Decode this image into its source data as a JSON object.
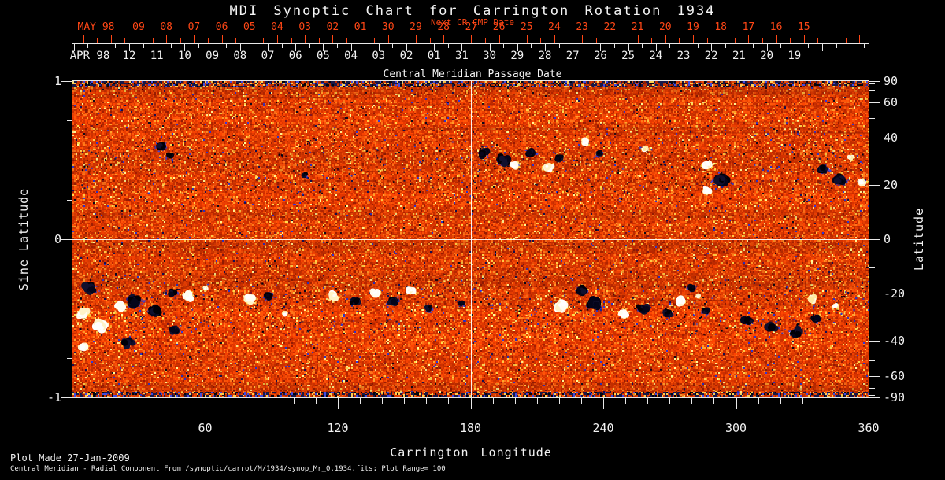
{
  "title": "MDI Synoptic Chart for Carrington Rotation 1934",
  "colors": {
    "background": "#000000",
    "foreground": "#f2f2f2",
    "next_cr_accent": "#ff4716",
    "grid_line": "#ffffff"
  },
  "cmp_axis": {
    "subtitle": "Next CR CMP Date",
    "axis_caption": "Central Meridian Passage Date",
    "next_row": {
      "month_label": "MAY 98",
      "dates": [
        "09",
        "08",
        "07",
        "06",
        "05",
        "04",
        "03",
        "02",
        "01",
        "30",
        "29",
        "28",
        "27",
        "26",
        "25",
        "24",
        "23",
        "22",
        "21",
        "20",
        "19",
        "18",
        "17",
        "16",
        "15"
      ]
    },
    "current_row": {
      "month_label": "APR 98",
      "dates": [
        "12",
        "11",
        "10",
        "09",
        "08",
        "07",
        "06",
        "05",
        "04",
        "03",
        "02",
        "01",
        "31",
        "30",
        "29",
        "28",
        "27",
        "26",
        "25",
        "24",
        "23",
        "22",
        "21",
        "20",
        "19"
      ]
    }
  },
  "left_axis": {
    "label": "Sine Latitude",
    "major_ticks": [
      "1",
      "0",
      "-1"
    ],
    "major_values": [
      1,
      0,
      -1
    ],
    "minor_values": [
      0.75,
      0.5,
      0.25,
      -0.25,
      -0.5,
      -0.75
    ]
  },
  "right_axis": {
    "label": "Latitude",
    "major_ticks": [
      "90",
      "60",
      "40",
      "20",
      "0",
      "-20",
      "-40",
      "-60",
      "-90"
    ],
    "major_values": [
      90,
      60,
      40,
      20,
      0,
      -20,
      -40,
      -60,
      -90
    ],
    "minor_values": [
      80,
      70,
      50,
      30,
      10,
      -10,
      -30,
      -50,
      -70,
      -80
    ]
  },
  "bottom_axis": {
    "label": "Carrington Longitude",
    "major_ticks": [
      "60",
      "120",
      "180",
      "240",
      "300",
      "360"
    ],
    "major_values": [
      60,
      120,
      180,
      240,
      300,
      360
    ],
    "minor_step": 10,
    "range": [
      0,
      360
    ]
  },
  "footer": {
    "line1": "Plot Made 27-Jan-2009",
    "line2": "Central Meridian - Radial Component From /synoptic/carrot/M/1934/synop_Mr_0.1934.fits; Plot Range=  100"
  },
  "chart_data": {
    "type": "heatmap",
    "title": "MDI Synoptic Chart for Carrington Rotation 1934",
    "x_axis": {
      "label": "Carrington Longitude",
      "range": [
        0,
        360
      ]
    },
    "y_axis": {
      "label": "Sine Latitude",
      "range": [
        -1,
        1
      ]
    },
    "value_range_gauss": [
      -100,
      100
    ],
    "colormap": {
      "strong_negative": "#000010",
      "negative_fringe": "#2d36c8",
      "background_quiet_sun": [
        "#b02600",
        "#d63400",
        "#f04004",
        "#ff5408",
        "#ff7a1c"
      ],
      "enhanced_network": "#ffd246",
      "strong_positive": "#ffffff"
    },
    "grid": {
      "vertical_line_lon": 180,
      "horizontal_line_sine_lat": 0,
      "color": "#ffffff"
    },
    "active_regions": [
      {
        "lon": 40,
        "lat": 36,
        "pol": "-",
        "size": 6,
        "str": 1.0
      },
      {
        "lon": 44,
        "lat": 32,
        "pol": "-",
        "size": 4,
        "str": 0.6
      },
      {
        "lon": 105,
        "lat": 24,
        "pol": "-",
        "size": 3,
        "str": 0.4
      },
      {
        "lon": 186,
        "lat": 33,
        "pol": "-",
        "size": 6,
        "str": 1.1
      },
      {
        "lon": 195,
        "lat": 30,
        "pol": "-",
        "size": 8,
        "str": 1.4
      },
      {
        "lon": 200,
        "lat": 28,
        "pol": "+",
        "size": 5,
        "str": 1.0
      },
      {
        "lon": 207,
        "lat": 33,
        "pol": "-",
        "size": 6,
        "str": 1.0
      },
      {
        "lon": 215,
        "lat": 27,
        "pol": "+",
        "size": 6,
        "str": 1.5
      },
      {
        "lon": 220,
        "lat": 31,
        "pol": "-",
        "size": 5,
        "str": 0.9
      },
      {
        "lon": 232,
        "lat": 38,
        "pol": "+",
        "size": 5,
        "str": 0.8
      },
      {
        "lon": 238,
        "lat": 33,
        "pol": "-",
        "size": 4,
        "str": 0.5
      },
      {
        "lon": 259,
        "lat": 35,
        "pol": "+",
        "size": 4,
        "str": 0.7
      },
      {
        "lon": 287,
        "lat": 28,
        "pol": "+",
        "size": 6,
        "str": 1.4
      },
      {
        "lon": 293,
        "lat": 22,
        "pol": "-",
        "size": 9,
        "str": 2.2
      },
      {
        "lon": 287,
        "lat": 18,
        "pol": "+",
        "size": 5,
        "str": 1.0
      },
      {
        "lon": 339,
        "lat": 26,
        "pol": "-",
        "size": 6,
        "str": 1.1
      },
      {
        "lon": 347,
        "lat": 22,
        "pol": "-",
        "size": 7,
        "str": 1.4
      },
      {
        "lon": 357,
        "lat": 21,
        "pol": "+",
        "size": 5,
        "str": 1.2
      },
      {
        "lon": 352,
        "lat": 31,
        "pol": "+",
        "size": 3,
        "str": 0.5
      },
      {
        "lon": 8,
        "lat": -18,
        "pol": "-",
        "size": 8,
        "str": 1.5
      },
      {
        "lon": 5,
        "lat": -28,
        "pol": "+",
        "size": 7,
        "str": 1.5
      },
      {
        "lon": 13,
        "lat": -33,
        "pol": "+",
        "size": 9,
        "str": 2.2
      },
      {
        "lon": 22,
        "lat": -25,
        "pol": "+",
        "size": 7,
        "str": 1.4
      },
      {
        "lon": 28,
        "lat": -23,
        "pol": "-",
        "size": 9,
        "str": 2.1
      },
      {
        "lon": 37,
        "lat": -27,
        "pol": "-",
        "size": 8,
        "str": 1.9
      },
      {
        "lon": 45,
        "lat": -20,
        "pol": "-",
        "size": 5,
        "str": 0.9
      },
      {
        "lon": 52,
        "lat": -21,
        "pol": "+",
        "size": 6,
        "str": 1.2
      },
      {
        "lon": 5,
        "lat": -43,
        "pol": "+",
        "size": 6,
        "str": 1.0
      },
      {
        "lon": 25,
        "lat": -41,
        "pol": "-",
        "size": 8,
        "str": 0.7
      },
      {
        "lon": 46,
        "lat": -35,
        "pol": "-",
        "size": 6,
        "str": 0.5
      },
      {
        "lon": 60,
        "lat": -18,
        "pol": "+",
        "size": 3,
        "str": 0.4
      },
      {
        "lon": 80,
        "lat": -22,
        "pol": "+",
        "size": 7,
        "str": 1.5
      },
      {
        "lon": 89,
        "lat": -21,
        "pol": "-",
        "size": 6,
        "str": 1.2
      },
      {
        "lon": 96,
        "lat": -28,
        "pol": "+",
        "size": 3,
        "str": 0.5
      },
      {
        "lon": 118,
        "lat": -21,
        "pol": "+",
        "size": 6,
        "str": 1.3
      },
      {
        "lon": 128,
        "lat": -23,
        "pol": "-",
        "size": 6,
        "str": 1.2
      },
      {
        "lon": 137,
        "lat": -20,
        "pol": "+",
        "size": 6,
        "str": 1.2
      },
      {
        "lon": 145,
        "lat": -23,
        "pol": "-",
        "size": 6,
        "str": 1.3
      },
      {
        "lon": 153,
        "lat": -19,
        "pol": "+",
        "size": 5,
        "str": 1.0
      },
      {
        "lon": 161,
        "lat": -26,
        "pol": "-",
        "size": 4,
        "str": 0.5
      },
      {
        "lon": 176,
        "lat": -24,
        "pol": "-",
        "size": 3,
        "str": 0.5
      },
      {
        "lon": 221,
        "lat": -25,
        "pol": "+",
        "size": 8,
        "str": 2.0
      },
      {
        "lon": 230,
        "lat": -19,
        "pol": "-",
        "size": 6,
        "str": 1.1
      },
      {
        "lon": 236,
        "lat": -24,
        "pol": "-",
        "size": 9,
        "str": 2.1
      },
      {
        "lon": 249,
        "lat": -28,
        "pol": "+",
        "size": 6,
        "str": 1.2
      },
      {
        "lon": 258,
        "lat": -26,
        "pol": "-",
        "size": 7,
        "str": 1.5
      },
      {
        "lon": 269,
        "lat": -28,
        "pol": "-",
        "size": 5,
        "str": 1.0
      },
      {
        "lon": 275,
        "lat": -23,
        "pol": "+",
        "size": 6,
        "str": 1.0
      },
      {
        "lon": 280,
        "lat": -18,
        "pol": "-",
        "size": 5,
        "str": 0.9
      },
      {
        "lon": 286,
        "lat": -27,
        "pol": "-",
        "size": 5,
        "str": 1.0
      },
      {
        "lon": 283,
        "lat": -21,
        "pol": "+",
        "size": 3,
        "str": 0.5
      },
      {
        "lon": 305,
        "lat": -31,
        "pol": "-",
        "size": 8,
        "str": 0.7
      },
      {
        "lon": 316,
        "lat": -34,
        "pol": "-",
        "size": 8,
        "str": 0.7
      },
      {
        "lon": 327,
        "lat": -36,
        "pol": "-",
        "size": 7,
        "str": 0.6
      },
      {
        "lon": 336,
        "lat": -30,
        "pol": "-",
        "size": 5,
        "str": 0.5
      },
      {
        "lon": 334,
        "lat": -22,
        "pol": "+",
        "size": 6,
        "str": 0.7
      },
      {
        "lon": 345,
        "lat": -25,
        "pol": "+",
        "size": 4,
        "str": 0.5
      }
    ]
  }
}
